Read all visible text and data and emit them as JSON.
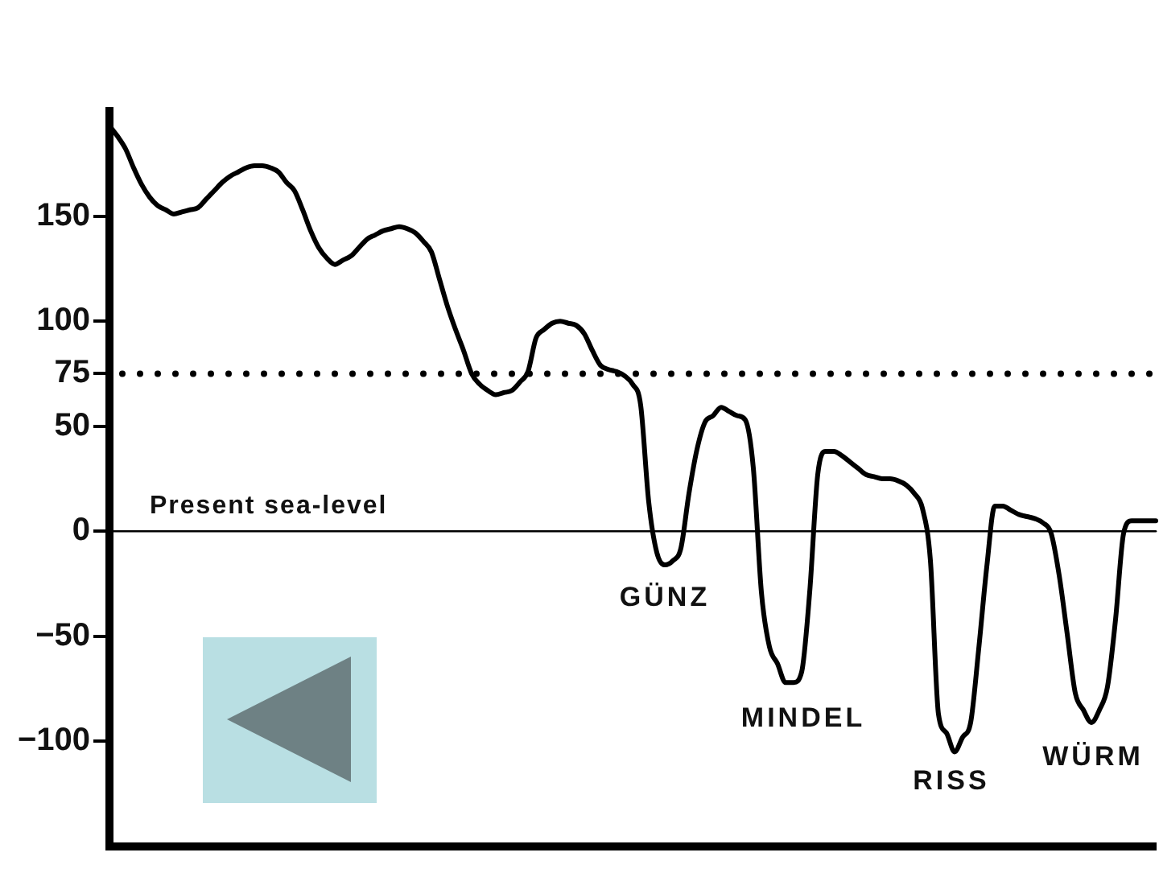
{
  "chart_data": {
    "type": "line",
    "categories": [
      null,
      null,
      null,
      null,
      null,
      null,
      null,
      null,
      null,
      null,
      null,
      null,
      null,
      null,
      null,
      null,
      null,
      null,
      null,
      null,
      null,
      null,
      null,
      null,
      null,
      null,
      null,
      null,
      null,
      null,
      null,
      null,
      null,
      null,
      null,
      null,
      null,
      null,
      null,
      null,
      null,
      null,
      null,
      null,
      null,
      null,
      null,
      null,
      null,
      null,
      null,
      null,
      null,
      null,
      null,
      null,
      null,
      null,
      null,
      null,
      null,
      null,
      null,
      null,
      null,
      null,
      null,
      null,
      null,
      null,
      null,
      null,
      null,
      null,
      null,
      null,
      null,
      null,
      null,
      null,
      null,
      null,
      null,
      null,
      null,
      null,
      null,
      null,
      null,
      null,
      null,
      null,
      null,
      null,
      null,
      null,
      null,
      null,
      null,
      null,
      null,
      null,
      null,
      null,
      null,
      null,
      null,
      null,
      null,
      null,
      null,
      null,
      null,
      null,
      null,
      null,
      null,
      null,
      null,
      null,
      null,
      null,
      null,
      null,
      null,
      null,
      null,
      null,
      null,
      null,
      null
    ],
    "series": [
      {
        "color": "#000000",
        "values": [
          193,
          188,
          182,
          173,
          165,
          159,
          155,
          153,
          151,
          152,
          153,
          154,
          158,
          162,
          166,
          169,
          171,
          173,
          174,
          174,
          173,
          171,
          166,
          162,
          153,
          143,
          135,
          130,
          127,
          129,
          131,
          135,
          139,
          141,
          143,
          144,
          145,
          144,
          142,
          138,
          133,
          120,
          107,
          96,
          86,
          75,
          70,
          67,
          65,
          66,
          67,
          71,
          76,
          92,
          96,
          99,
          100,
          99,
          98,
          94,
          86,
          79,
          77,
          76,
          74,
          70,
          60,
          14,
          -10,
          -16,
          -14,
          -8,
          18,
          39,
          52,
          55,
          59,
          57,
          55,
          53,
          30,
          -29,
          -55,
          -63,
          -72,
          -72,
          -67,
          -29,
          27,
          38,
          38,
          36,
          33,
          30,
          27,
          26,
          25,
          25,
          24,
          22,
          18,
          11,
          -14,
          -87,
          -96,
          -105,
          -98,
          -91,
          -56,
          -17,
          12,
          12,
          10,
          8,
          7,
          6,
          4,
          -1,
          -21,
          -49,
          -77,
          -85,
          -91,
          -85,
          -74,
          -42,
          -1,
          5,
          5,
          5,
          5
        ]
      }
    ],
    "ylim": [
      -150,
      200
    ],
    "yticks": [
      150,
      100,
      75,
      50,
      0,
      {
        "value": -50,
        "label": "−50"
      },
      {
        "value": -100,
        "label": "−100"
      }
    ],
    "tick_labels": "y",
    "marker": "none",
    "line_style": "solid",
    "ref_lines": [
      {
        "axis": "y",
        "value": 75,
        "line_style": "dotted",
        "color": "#000000"
      },
      {
        "axis": "y",
        "value": 0,
        "label": "Present sea-level",
        "color": "#000000"
      }
    ],
    "annotations": [
      "GÜNZ",
      "MINDEL",
      "RISS",
      "WÜRM"
    ]
  }
}
